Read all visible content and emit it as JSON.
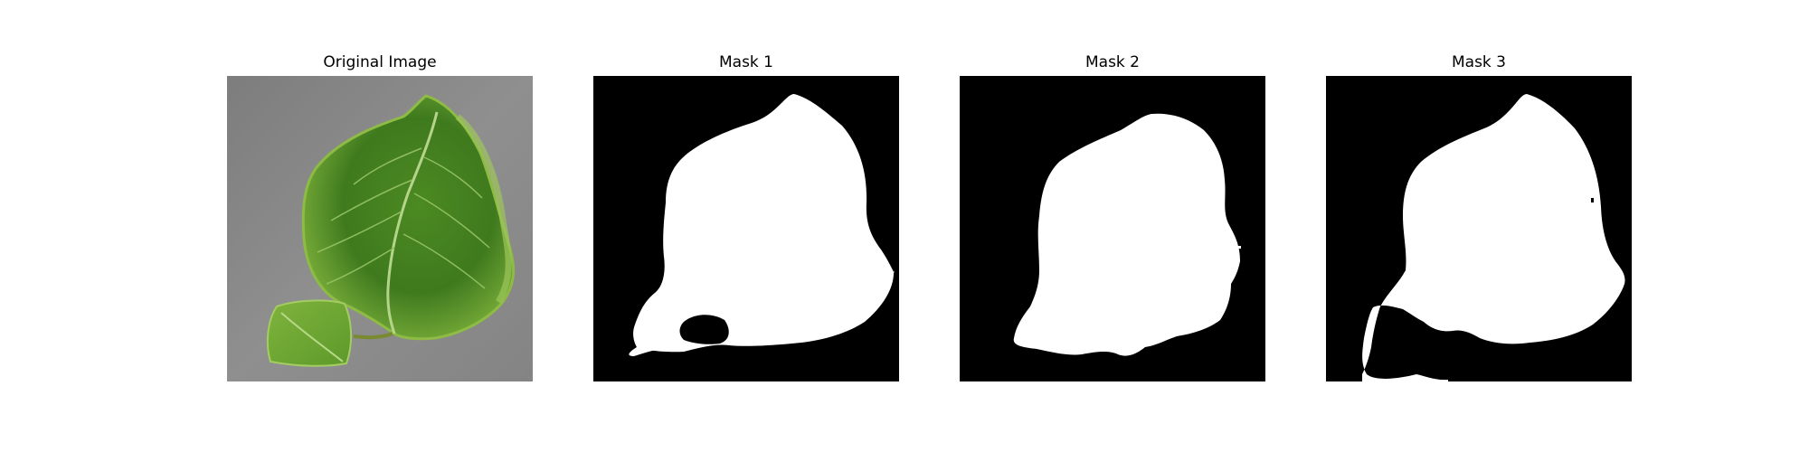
{
  "panels": [
    {
      "title": "Original Image",
      "kind": "photo"
    },
    {
      "title": "Mask 1",
      "kind": "mask"
    },
    {
      "title": "Mask 2",
      "kind": "mask"
    },
    {
      "title": "Mask 3",
      "kind": "mask"
    }
  ],
  "colors": {
    "background": "#ffffff",
    "mask_background": "#000000",
    "mask_foreground": "#ffffff",
    "photo_background": "#8a8a8a",
    "leaf_dark": "#3f7a1e",
    "leaf_mid": "#5f9a2c",
    "leaf_light": "#8dbb44",
    "vein": "#a9cc7a"
  }
}
